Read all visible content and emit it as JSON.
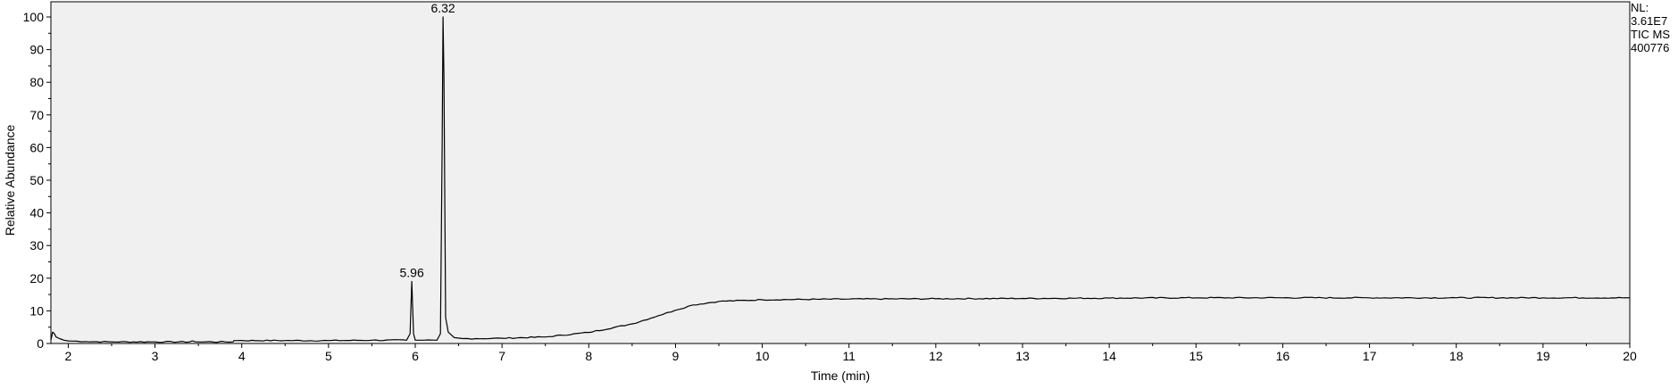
{
  "chart_data": {
    "type": "line",
    "xlabel": "Time (min)",
    "ylabel": "Relative Abundance",
    "xlim": [
      1.8,
      20
    ],
    "ylim": [
      0,
      100
    ],
    "x_ticks": [
      2,
      3,
      4,
      5,
      6,
      7,
      8,
      9,
      10,
      11,
      12,
      13,
      14,
      15,
      16,
      17,
      18,
      19,
      20
    ],
    "y_ticks": [
      0,
      10,
      20,
      30,
      40,
      50,
      60,
      70,
      80,
      90,
      100
    ],
    "grid": false,
    "background": "#f0f0f0",
    "line_color": "#000000",
    "info": [
      "NL:",
      "3.61E7",
      "TIC  MS",
      "400776"
    ],
    "peaks": [
      {
        "label": "5.96",
        "x": 5.96,
        "y": 19
      },
      {
        "label": "6.32",
        "x": 6.32,
        "y": 100
      }
    ],
    "series": [
      {
        "x": [
          1.8,
          1.82,
          1.84,
          1.86,
          1.9,
          1.95,
          2.0,
          2.2,
          2.5,
          3.0,
          3.4,
          3.43,
          3.47,
          3.5,
          3.9,
          3.91,
          3.95,
          4.5,
          5.0,
          5.5,
          5.9,
          5.94,
          5.96,
          5.98,
          6.0,
          6.1,
          6.25,
          6.29,
          6.31,
          6.32,
          6.33,
          6.35,
          6.38,
          6.45,
          6.55,
          6.7,
          7.0,
          7.5,
          8.0,
          8.5,
          8.8,
          9.0,
          9.2,
          9.5,
          10.0,
          11.0,
          12.0,
          13.0,
          14.0,
          15.0,
          16.0,
          17.0,
          18.0,
          19.0,
          20.0
        ],
        "y": [
          1.0,
          3.5,
          3.0,
          2.0,
          1.5,
          1.0,
          0.8,
          0.6,
          0.5,
          0.5,
          0.5,
          0.8,
          0.5,
          0.5,
          0.5,
          0.9,
          0.9,
          0.9,
          0.9,
          1.0,
          1.0,
          3.0,
          19.0,
          3.0,
          1.0,
          1.0,
          1.0,
          3.0,
          60.0,
          100.0,
          82.0,
          8.0,
          3.5,
          1.8,
          1.5,
          1.5,
          1.6,
          2.0,
          3.4,
          6.0,
          8.5,
          10.2,
          11.8,
          12.9,
          13.4,
          13.6,
          13.7,
          13.8,
          13.9,
          14.0,
          14.0,
          14.0,
          14.0,
          14.0,
          14.0
        ]
      }
    ]
  }
}
